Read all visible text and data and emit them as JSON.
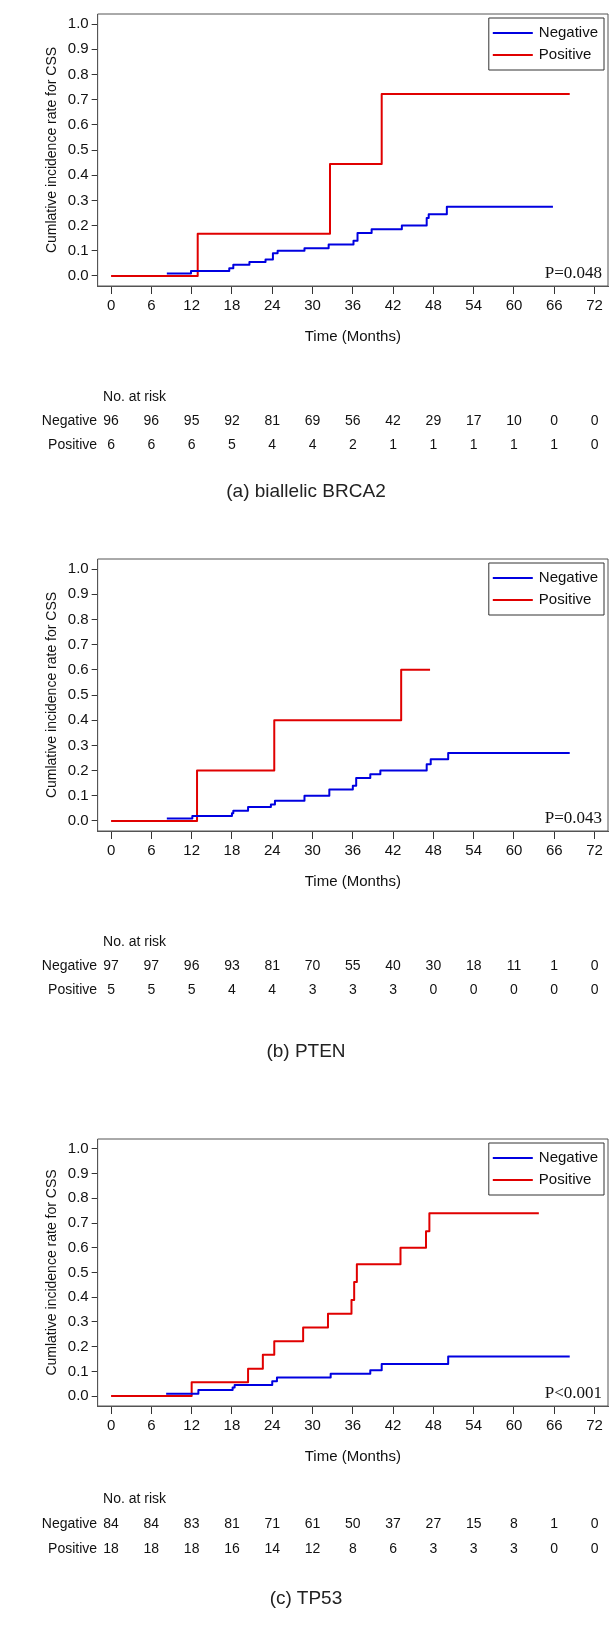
{
  "chart_data": [
    {
      "type": "step",
      "title": "(a) biallelic BRCA2",
      "xlabel": "Time (Months)",
      "ylabel": "Cumlative incidence rate for CSS",
      "xlim": [
        -2,
        74
      ],
      "xticks": [
        0,
        6,
        12,
        18,
        24,
        30,
        36,
        42,
        48,
        54,
        60,
        66,
        72
      ],
      "ylim": [
        -0.04,
        1.04
      ],
      "yticks": [
        {
          "value": 0,
          "label": "0.0"
        },
        {
          "value": 0.1,
          "label": "0.1"
        },
        {
          "value": 0.2,
          "label": "0.2"
        },
        {
          "value": 0.3,
          "label": "0.3"
        },
        {
          "value": 0.4,
          "label": "0.4"
        },
        {
          "value": 0.5,
          "label": "0.5"
        },
        {
          "value": 0.6,
          "label": "0.6"
        },
        {
          "value": 0.7,
          "label": "0.7"
        },
        {
          "value": 0.8,
          "label": "0.8"
        },
        {
          "value": 0.9,
          "label": "0.9"
        },
        {
          "value": 1,
          "label": "1.0"
        }
      ],
      "grid": false,
      "legend": "top right",
      "marker": "none",
      "series": [
        {
          "name": "Negative",
          "color": "#0000e0",
          "x": [
            8.3,
            11.9,
            17.6,
            18.2,
            20.6,
            23,
            24.1,
            24.8,
            28.8,
            32.4,
            36.1,
            36.7,
            38.8,
            43.3,
            47,
            47.3,
            50,
            65.8
          ],
          "values": [
            0.01,
            0.02,
            0.03,
            0.044,
            0.055,
            0.065,
            0.09,
            0.1,
            0.11,
            0.125,
            0.14,
            0.17,
            0.185,
            0.2,
            0.23,
            0.245,
            0.275,
            0.275
          ]
        },
        {
          "name": "Positive",
          "color": "#e00000",
          "x": [
            0,
            12.9,
            32.6,
            40.3,
            68.3
          ],
          "values": [
            0,
            0.167,
            0.444,
            0.722,
            0.722
          ]
        }
      ],
      "annotations": [
        "P=0.048",
        "No. at risk",
        "Negative 96 96 95 92 81 69 56 42 29 17 10 0 0",
        "Positive 6 6 6 5 4 4 2 1 1 1 1 1 0"
      ]
    },
    {
      "type": "step",
      "title": "(b) PTEN",
      "xlabel": "Time (Months)",
      "ylabel": "Cumlative incidence rate for CSS",
      "xlim": [
        -2,
        74
      ],
      "xticks": [
        0,
        6,
        12,
        18,
        24,
        30,
        36,
        42,
        48,
        54,
        60,
        66,
        72
      ],
      "ylim": [
        -0.04,
        1.04
      ],
      "yticks": [
        {
          "value": 0,
          "label": "0.0"
        },
        {
          "value": 0.1,
          "label": "0.1"
        },
        {
          "value": 0.2,
          "label": "0.2"
        },
        {
          "value": 0.3,
          "label": "0.3"
        },
        {
          "value": 0.4,
          "label": "0.4"
        },
        {
          "value": 0.5,
          "label": "0.5"
        },
        {
          "value": 0.6,
          "label": "0.6"
        },
        {
          "value": 0.7,
          "label": "0.7"
        },
        {
          "value": 0.8,
          "label": "0.8"
        },
        {
          "value": 0.9,
          "label": "0.9"
        },
        {
          "value": 1,
          "label": "1.0"
        }
      ],
      "grid": false,
      "legend": "top right",
      "marker": "none",
      "series": [
        {
          "name": "Negative",
          "color": "#0000e0",
          "x": [
            8.3,
            12.1,
            18,
            18.2,
            20.4,
            23.8,
            24.4,
            28.8,
            32.5,
            36,
            36.5,
            38.6,
            40.1,
            47,
            47.6,
            50.2,
            68.3
          ],
          "values": [
            0.01,
            0.02,
            0.03,
            0.04,
            0.055,
            0.065,
            0.08,
            0.1,
            0.125,
            0.14,
            0.17,
            0.185,
            0.2,
            0.225,
            0.245,
            0.27,
            0.27
          ]
        },
        {
          "name": "Positive",
          "color": "#e00000",
          "x": [
            0,
            12.8,
            24.3,
            43.2,
            47.5
          ],
          "values": [
            0,
            0.2,
            0.4,
            0.6,
            0.6
          ]
        }
      ],
      "annotations": [
        "P=0.043",
        "No. at risk",
        "Negative 97 97 96 93 81 70 55 40 30 18 11 1 0",
        "Positive 5 5 5 4 4 3 3 3 0 0 0 0 0"
      ]
    },
    {
      "type": "step",
      "title": "(c) TP53",
      "xlabel": "Time (Months)",
      "ylabel": "Cumlative incidence rate for CSS",
      "xlim": [
        -2,
        74
      ],
      "xticks": [
        0,
        6,
        12,
        18,
        24,
        30,
        36,
        42,
        48,
        54,
        60,
        66,
        72
      ],
      "ylim": [
        -0.04,
        1.04
      ],
      "yticks": [
        {
          "value": 0,
          "label": "0.0"
        },
        {
          "value": 0.1,
          "label": "0.1"
        },
        {
          "value": 0.2,
          "label": "0.2"
        },
        {
          "value": 0.3,
          "label": "0.3"
        },
        {
          "value": 0.4,
          "label": "0.4"
        },
        {
          "value": 0.5,
          "label": "0.5"
        },
        {
          "value": 0.6,
          "label": "0.6"
        },
        {
          "value": 0.7,
          "label": "0.7"
        },
        {
          "value": 0.8,
          "label": "0.8"
        },
        {
          "value": 0.9,
          "label": "0.9"
        },
        {
          "value": 1,
          "label": "1.0"
        }
      ],
      "grid": false,
      "legend": "top right",
      "marker": "none",
      "series": [
        {
          "name": "Negative",
          "color": "#0000e0",
          "x": [
            8.2,
            13,
            18.1,
            18.4,
            24,
            24.7,
            32.7,
            38.6,
            40.3,
            50.2,
            68.3
          ],
          "values": [
            0.01,
            0.025,
            0.035,
            0.045,
            0.06,
            0.075,
            0.09,
            0.105,
            0.13,
            0.16,
            0.16
          ]
        },
        {
          "name": "Positive",
          "color": "#e00000",
          "x": [
            0,
            12,
            20.4,
            22.6,
            24.3,
            28.6,
            32.3,
            35.8,
            36.2,
            36.6,
            43.1,
            46.9,
            47.4,
            63.7
          ],
          "values": [
            0,
            0.056,
            0.111,
            0.167,
            0.222,
            0.278,
            0.333,
            0.389,
            0.462,
            0.533,
            0.6,
            0.667,
            0.74,
            0.74
          ]
        }
      ],
      "annotations": [
        "P<0.001",
        "No. at risk",
        "Negative 84 84 83 81 71 61 50 37 27 15 8 1 0",
        "Positive 18 18 18 16 14 12 8 6 3 3 3 0 0"
      ]
    }
  ]
}
